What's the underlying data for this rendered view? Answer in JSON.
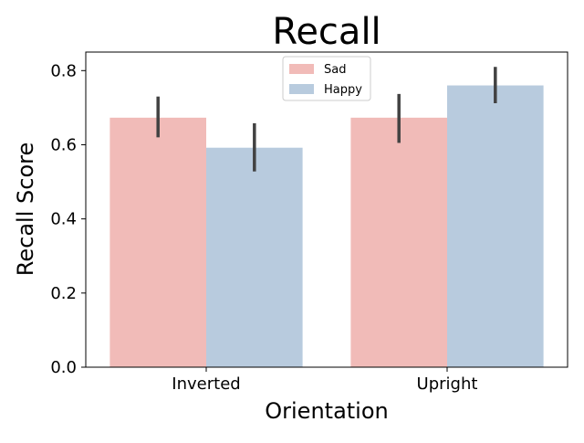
{
  "chart_data": {
    "type": "bar",
    "title": "Recall",
    "xlabel": "Orientation",
    "ylabel": "Recall Score",
    "categories": [
      "Inverted",
      "Upright"
    ],
    "series": [
      {
        "name": "Sad",
        "color": "#f1bbb8",
        "values": [
          0.673,
          0.673
        ],
        "err_low": [
          0.62,
          0.605
        ],
        "err_high": [
          0.73,
          0.737
        ]
      },
      {
        "name": "Happy",
        "color": "#b8cbde",
        "values": [
          0.592,
          0.76
        ],
        "err_low": [
          0.528,
          0.712
        ],
        "err_high": [
          0.658,
          0.81
        ]
      }
    ],
    "ylim": [
      0,
      0.85
    ],
    "yticks": [
      "0.0",
      "0.2",
      "0.4",
      "0.6",
      "0.8"
    ],
    "error_bar_color": "#424242",
    "grid": false,
    "legend_position": "top-center"
  }
}
